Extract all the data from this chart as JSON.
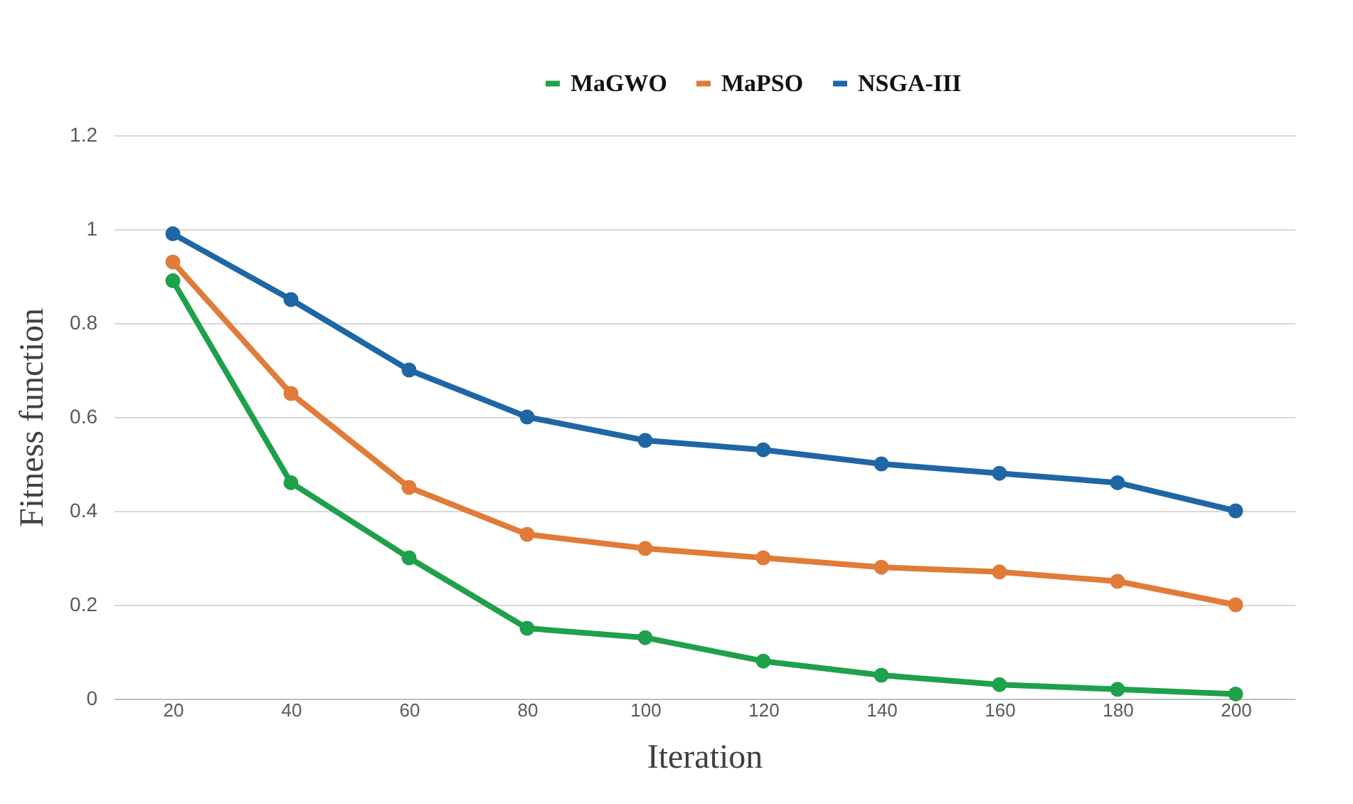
{
  "chart_data": {
    "type": "line",
    "xlabel": "Iteration",
    "ylabel": "Fitness function",
    "categories": [
      "20",
      "40",
      "60",
      "80",
      "100",
      "120",
      "140",
      "160",
      "180",
      "200"
    ],
    "series": [
      {
        "name": "MaGWO",
        "color": "#1fa04a",
        "values": [
          0.89,
          0.46,
          0.3,
          0.15,
          0.13,
          0.08,
          0.05,
          0.03,
          0.02,
          0.01
        ]
      },
      {
        "name": "MaPSO",
        "color": "#e07b39",
        "values": [
          0.93,
          0.65,
          0.45,
          0.35,
          0.32,
          0.3,
          0.28,
          0.27,
          0.25,
          0.2
        ]
      },
      {
        "name": "NSGA-III",
        "color": "#1f66a5",
        "values": [
          0.99,
          0.85,
          0.7,
          0.6,
          0.55,
          0.53,
          0.5,
          0.48,
          0.46,
          0.4
        ]
      }
    ],
    "ylim": [
      0,
      1.2
    ],
    "yticks": [
      0,
      0.2,
      0.4,
      0.6,
      0.8,
      1,
      1.2
    ],
    "grid": "y",
    "legend": "top",
    "marker": "circle",
    "line_style": "solid"
  }
}
